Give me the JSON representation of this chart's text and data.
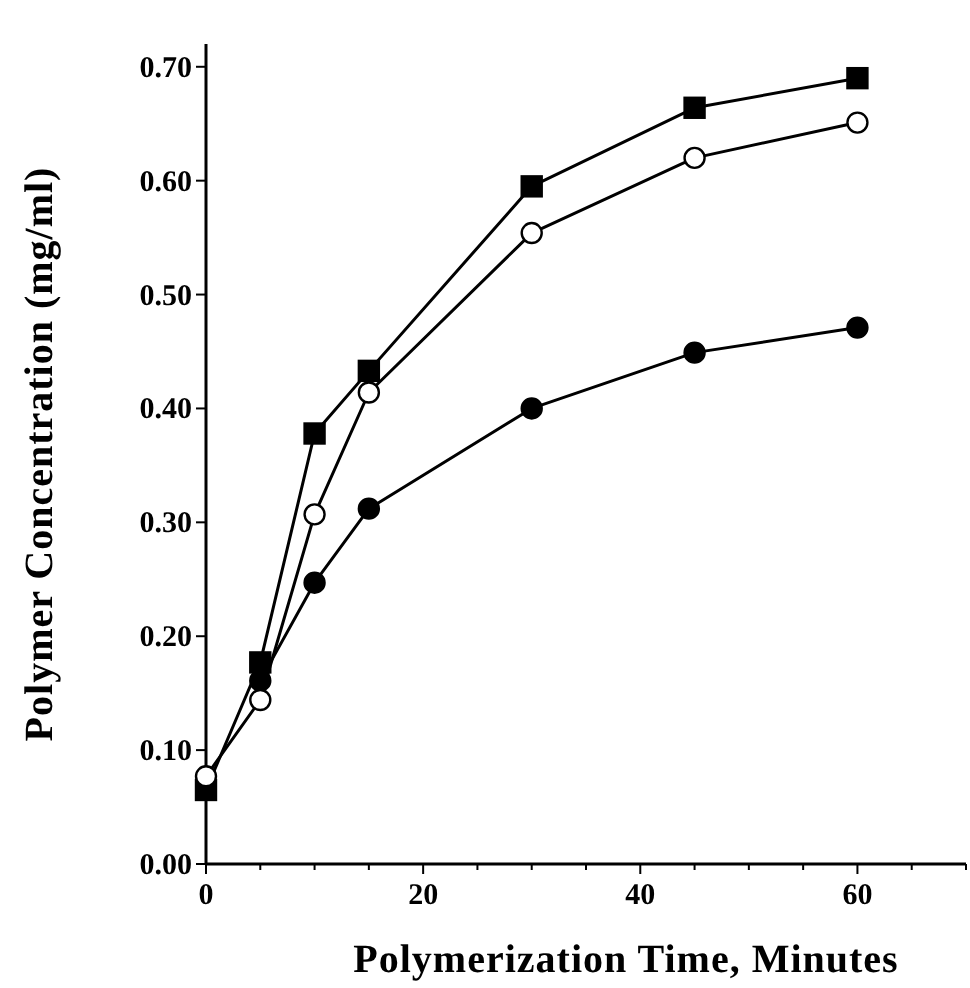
{
  "chart_data": {
    "type": "line",
    "xlabel": "Polymerization Time, Minutes",
    "ylabel": "Polymer Concentration (mg/ml)",
    "x": [
      0,
      5,
      10,
      15,
      30,
      45,
      60
    ],
    "series": [
      {
        "color": "#000000",
        "marker": "square",
        "values": [
          0.065,
          0.177,
          0.378,
          0.433,
          0.595,
          0.664,
          0.69
        ]
      },
      {
        "color": "#ffffff",
        "marker": "circle",
        "values": [
          0.077,
          0.144,
          0.307,
          0.414,
          0.554,
          0.62,
          0.651
        ]
      },
      {
        "color": "#000000",
        "marker": "circle",
        "values": [
          null,
          0.161,
          0.247,
          0.312,
          0.4,
          0.449,
          0.471
        ]
      }
    ],
    "xlim": [
      0,
      70
    ],
    "ylim": [
      0,
      0.72
    ],
    "xticks": [
      0,
      {
        "value": 5,
        "label": null
      },
      {
        "value": 10,
        "label": null
      },
      {
        "value": 15,
        "label": null
      },
      20,
      {
        "value": 25,
        "label": null
      },
      {
        "value": 30,
        "label": null
      },
      {
        "value": 35,
        "label": null
      },
      40,
      {
        "value": 45,
        "label": null
      },
      {
        "value": 50,
        "label": null
      },
      {
        "value": 55,
        "label": null
      },
      60,
      {
        "value": 65,
        "label": null
      },
      {
        "value": 70,
        "label": null
      }
    ],
    "yticks": [
      {
        "value": 0,
        "label": "0.00"
      },
      {
        "value": 0.1,
        "label": "0.10"
      },
      {
        "value": 0.2,
        "label": "0.20"
      },
      {
        "value": 0.3,
        "label": "0.30"
      },
      {
        "value": 0.4,
        "label": "0.40"
      },
      {
        "value": 0.5,
        "label": "0.50"
      },
      {
        "value": 0.6,
        "label": "0.60"
      },
      {
        "value": 0.7,
        "label": "0.70"
      }
    ],
    "grid": false,
    "line_style": "solid"
  }
}
